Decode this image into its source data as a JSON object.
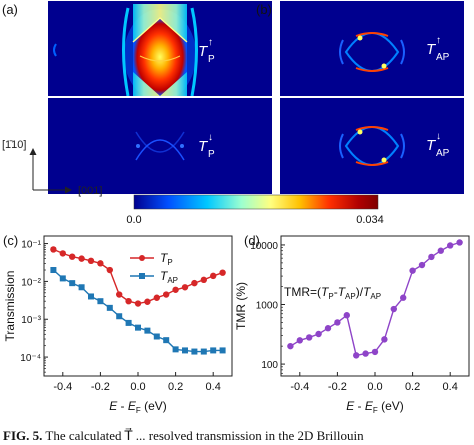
{
  "panel_labels": {
    "a": "(a)",
    "b": "(b)",
    "c": "(c)",
    "d": "(d)"
  },
  "maps": {
    "a_top": {
      "label_main": "T",
      "label_sub": "P",
      "label_sup": "↑"
    },
    "a_bottom": {
      "label_main": "T",
      "label_sub": "P",
      "label_sup": "↓"
    },
    "b_top": {
      "label_main": "T",
      "label_sub": "AP",
      "label_sup": "↑"
    },
    "b_bottom": {
      "label_main": "T",
      "label_sub": "AP",
      "label_sup": "↓"
    }
  },
  "axes_indicator": {
    "vertical_label": "[1̄10]",
    "horizontal_label": "[001]"
  },
  "colorbar": {
    "min_label": "0.0",
    "max_label": "0.034",
    "colors": [
      "#00008f",
      "#0050ff",
      "#00c8ff",
      "#9cffd0",
      "#ffff80",
      "#ffc000",
      "#ff3000",
      "#b00000",
      "#7f0000"
    ]
  },
  "caption": {
    "prefix": "FIG. 5.",
    "text": " The calculated T⃗ ... resolved transmission in the 2D Brillouin"
  },
  "chart_data": [
    {
      "type": "line",
      "panel": "(c)",
      "xlabel": "E - E_F (eV)",
      "ylabel": "Transmission",
      "xlim": [
        -0.5,
        0.5
      ],
      "ylim_log10": [
        -4.5,
        -0.8
      ],
      "yscale": "log",
      "xticks": [
        "-0.4",
        "-0.2",
        "0.0",
        "0.2",
        "0.4"
      ],
      "yticks": [
        "10⁻⁴",
        "10⁻³",
        "10⁻²",
        "10⁻¹"
      ],
      "legend_position": "top-right",
      "series": [
        {
          "name": "T_P",
          "color": "#d62728",
          "marker": "circle",
          "x": [
            -0.45,
            -0.4,
            -0.35,
            -0.3,
            -0.25,
            -0.2,
            -0.15,
            -0.1,
            -0.05,
            0.0,
            0.05,
            0.1,
            0.15,
            0.2,
            0.25,
            0.3,
            0.35,
            0.4,
            0.45
          ],
          "y": [
            0.07,
            0.055,
            0.045,
            0.04,
            0.035,
            0.03,
            0.02,
            0.0045,
            0.003,
            0.0026,
            0.0029,
            0.0037,
            0.0045,
            0.006,
            0.007,
            0.009,
            0.011,
            0.014,
            0.017
          ]
        },
        {
          "name": "T_AP",
          "color": "#1f77b4",
          "marker": "square",
          "x": [
            -0.45,
            -0.4,
            -0.35,
            -0.3,
            -0.25,
            -0.2,
            -0.15,
            -0.1,
            -0.05,
            0.0,
            0.05,
            0.1,
            0.15,
            0.2,
            0.25,
            0.3,
            0.35,
            0.4,
            0.45
          ],
          "y": [
            0.02,
            0.012,
            0.009,
            0.007,
            0.004,
            0.003,
            0.002,
            0.0012,
            0.0008,
            0.0006,
            0.0005,
            0.00035,
            0.00028,
            0.00016,
            0.00015,
            0.00014,
            0.00014,
            0.00015,
            0.00015
          ]
        }
      ]
    },
    {
      "type": "line",
      "panel": "(d)",
      "xlabel": "E - E_F (eV)",
      "ylabel": "TMR (%)",
      "xlim": [
        -0.5,
        0.5
      ],
      "ylim_log10": [
        1.8,
        4.15
      ],
      "yscale": "log",
      "xticks": [
        "-0.4",
        "-0.2",
        "0.0",
        "0.2",
        "0.4"
      ],
      "yticks": [
        "100",
        "1000",
        "10000"
      ],
      "annotation": "TMR=(T_P-T_AP)/T_AP",
      "series": [
        {
          "color": "#8e44c8",
          "marker": "circle",
          "x": [
            -0.45,
            -0.4,
            -0.35,
            -0.3,
            -0.25,
            -0.2,
            -0.15,
            -0.1,
            -0.05,
            0.0,
            0.05,
            0.1,
            0.15,
            0.2,
            0.25,
            0.3,
            0.35,
            0.4,
            0.45
          ],
          "y": [
            200,
            250,
            280,
            320,
            400,
            500,
            660,
            140,
            150,
            160,
            260,
            840,
            1300,
            3700,
            4600,
            6300,
            8000,
            9800,
            11000
          ]
        }
      ]
    }
  ]
}
